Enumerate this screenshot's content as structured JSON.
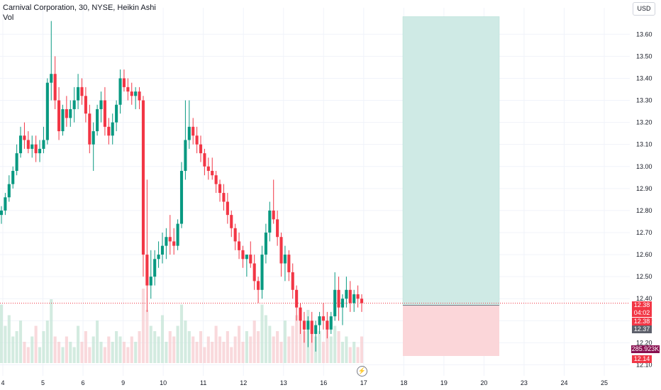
{
  "header": {
    "title": "Carnival Corporation, 30, NYSE, Heikin Ashi",
    "vol_label": "Vol",
    "currency": "USD"
  },
  "tags": {
    "price": "12.38",
    "countdown": "04:02",
    "price2": "12.38",
    "prev": "12.37",
    "volume": "285.923K",
    "stop": "12.14"
  },
  "colors": {
    "up": "#089981",
    "down": "#f23645",
    "target_zone": "#cfeae5",
    "stop_zone": "#fbd6d9"
  },
  "chart_data": {
    "type": "candlestick",
    "ylim": [
      12.05,
      13.72
    ],
    "y_ticks": [
      12.1,
      12.2,
      12.3,
      12.4,
      12.5,
      12.6,
      12.7,
      12.8,
      12.9,
      13.0,
      13.1,
      13.2,
      13.3,
      13.4,
      13.5,
      13.6
    ],
    "y_tick_labels": [
      "12.10",
      "12.20",
      "12.30",
      "12.40",
      "12.50",
      "12.60",
      "12.70",
      "12.80",
      "12.90",
      "13.00",
      "13.10",
      "13.20",
      "13.30",
      "13.40",
      "13.50",
      "13.60"
    ],
    "x_ticks": [
      "4",
      "5",
      "6",
      "9",
      "10",
      "11",
      "12",
      "13",
      "16",
      "17",
      "18",
      "19",
      "20",
      "23",
      "24",
      "25"
    ],
    "last_price": 12.38,
    "position": {
      "entry": 12.37,
      "target": 13.68,
      "stop": 12.14
    },
    "candles": [
      [
        12.78,
        12.82,
        12.74,
        12.8
      ],
      [
        12.8,
        12.88,
        12.78,
        12.86
      ],
      [
        12.86,
        12.96,
        12.84,
        12.92
      ],
      [
        12.92,
        13.0,
        12.9,
        12.98
      ],
      [
        12.98,
        13.1,
        12.96,
        13.06
      ],
      [
        13.06,
        13.18,
        13.04,
        13.14
      ],
      [
        13.14,
        13.2,
        13.08,
        13.12
      ],
      [
        13.12,
        13.16,
        13.06,
        13.08
      ],
      [
        13.08,
        13.14,
        13.04,
        13.1
      ],
      [
        13.1,
        13.14,
        13.02,
        13.06
      ],
      [
        13.06,
        13.12,
        13.02,
        13.08
      ],
      [
        13.08,
        13.18,
        13.06,
        13.12
      ],
      [
        13.12,
        13.4,
        13.1,
        13.38
      ],
      [
        13.38,
        13.66,
        13.3,
        13.42
      ],
      [
        13.42,
        13.5,
        13.26,
        13.3
      ],
      [
        13.3,
        13.36,
        13.12,
        13.16
      ],
      [
        13.16,
        13.28,
        13.14,
        13.26
      ],
      [
        13.26,
        13.32,
        13.18,
        13.22
      ],
      [
        13.22,
        13.3,
        13.18,
        13.26
      ],
      [
        13.26,
        13.36,
        13.2,
        13.3
      ],
      [
        13.3,
        13.42,
        13.26,
        13.36
      ],
      [
        13.36,
        13.4,
        13.28,
        13.32
      ],
      [
        13.32,
        13.36,
        13.2,
        13.24
      ],
      [
        13.24,
        13.28,
        13.06,
        13.1
      ],
      [
        13.1,
        13.2,
        12.98,
        13.16
      ],
      [
        13.16,
        13.28,
        13.14,
        13.26
      ],
      [
        13.26,
        13.34,
        13.2,
        13.3
      ],
      [
        13.3,
        13.36,
        13.14,
        13.18
      ],
      [
        13.18,
        13.22,
        13.1,
        13.14
      ],
      [
        13.14,
        13.24,
        13.1,
        13.2
      ],
      [
        13.2,
        13.3,
        13.16,
        13.28
      ],
      [
        13.28,
        13.44,
        13.24,
        13.4
      ],
      [
        13.4,
        13.44,
        13.34,
        13.36
      ],
      [
        13.36,
        13.4,
        13.3,
        13.34
      ],
      [
        13.34,
        13.38,
        13.28,
        13.32
      ],
      [
        13.32,
        13.36,
        13.26,
        13.34
      ],
      [
        13.34,
        13.36,
        13.26,
        13.3
      ],
      [
        13.3,
        13.32,
        12.5,
        12.6
      ],
      [
        12.6,
        12.94,
        12.34,
        12.46
      ],
      [
        12.46,
        12.62,
        12.4,
        12.5
      ],
      [
        12.5,
        12.62,
        12.46,
        12.58
      ],
      [
        12.58,
        12.66,
        12.54,
        12.6
      ],
      [
        12.6,
        12.7,
        12.56,
        12.64
      ],
      [
        12.64,
        12.72,
        12.58,
        12.68
      ],
      [
        12.68,
        12.78,
        12.6,
        12.66
      ],
      [
        12.66,
        12.72,
        12.6,
        12.64
      ],
      [
        12.64,
        12.76,
        12.62,
        12.74
      ],
      [
        12.74,
        13.02,
        12.72,
        12.98
      ],
      [
        12.98,
        13.3,
        12.94,
        13.12
      ],
      [
        13.12,
        13.3,
        13.08,
        13.18
      ],
      [
        13.18,
        13.22,
        13.1,
        13.14
      ],
      [
        13.14,
        13.18,
        13.06,
        13.1
      ],
      [
        13.1,
        13.14,
        13.02,
        13.06
      ],
      [
        13.06,
        13.08,
        12.96,
        13.0
      ],
      [
        13.0,
        13.04,
        12.94,
        12.98
      ],
      [
        12.98,
        13.04,
        12.94,
        12.96
      ],
      [
        12.96,
        12.98,
        12.88,
        12.92
      ],
      [
        12.92,
        12.94,
        12.84,
        12.88
      ],
      [
        12.88,
        12.92,
        12.8,
        12.84
      ],
      [
        12.84,
        12.88,
        12.74,
        12.78
      ],
      [
        12.78,
        12.8,
        12.68,
        12.72
      ],
      [
        12.72,
        12.74,
        12.62,
        12.66
      ],
      [
        12.66,
        12.7,
        12.58,
        12.62
      ],
      [
        12.62,
        12.64,
        12.54,
        12.58
      ],
      [
        12.58,
        12.6,
        12.5,
        12.6
      ],
      [
        12.6,
        12.66,
        12.54,
        12.56
      ],
      [
        12.56,
        12.6,
        12.44,
        12.48
      ],
      [
        12.48,
        12.5,
        12.38,
        12.44
      ],
      [
        12.44,
        12.64,
        12.4,
        12.6
      ],
      [
        12.6,
        12.74,
        12.56,
        12.7
      ],
      [
        12.7,
        12.84,
        12.66,
        12.8
      ],
      [
        12.8,
        12.94,
        12.74,
        12.76
      ],
      [
        12.76,
        12.8,
        12.64,
        12.68
      ],
      [
        12.68,
        12.7,
        12.5,
        12.56
      ],
      [
        12.56,
        12.64,
        12.48,
        12.6
      ],
      [
        12.6,
        12.62,
        12.48,
        12.52
      ],
      [
        12.52,
        12.56,
        12.4,
        12.44
      ],
      [
        12.44,
        12.46,
        12.3,
        12.36
      ],
      [
        12.36,
        12.38,
        12.24,
        12.3
      ],
      [
        12.3,
        12.34,
        12.2,
        12.26
      ],
      [
        12.26,
        12.32,
        12.18,
        12.3
      ],
      [
        12.3,
        12.34,
        12.2,
        12.24
      ],
      [
        12.24,
        12.3,
        12.16,
        12.28
      ],
      [
        12.28,
        12.34,
        12.24,
        12.32
      ],
      [
        12.32,
        12.38,
        12.26,
        12.3
      ],
      [
        12.3,
        12.34,
        12.22,
        12.26
      ],
      [
        12.26,
        12.34,
        12.24,
        12.32
      ],
      [
        12.32,
        12.52,
        12.3,
        12.44
      ],
      [
        12.44,
        12.5,
        12.3,
        12.36
      ],
      [
        12.36,
        12.42,
        12.28,
        12.4
      ],
      [
        12.4,
        12.5,
        12.36,
        12.44
      ],
      [
        12.44,
        12.48,
        12.34,
        12.38
      ],
      [
        12.38,
        12.44,
        12.34,
        12.42
      ],
      [
        12.42,
        12.46,
        12.36,
        12.4
      ],
      [
        12.4,
        12.42,
        12.34,
        12.38
      ]
    ],
    "volumes": [
      0.55,
      0.35,
      0.45,
      0.25,
      0.3,
      0.4,
      0.2,
      0.15,
      0.25,
      0.35,
      0.15,
      0.3,
      0.4,
      0.6,
      0.25,
      0.2,
      0.15,
      0.25,
      0.2,
      0.15,
      0.35,
      0.2,
      0.3,
      0.15,
      0.25,
      0.4,
      0.2,
      0.15,
      0.25,
      0.2,
      0.3,
      0.25,
      0.2,
      0.15,
      0.25,
      0.2,
      0.3,
      0.7,
      0.5,
      0.35,
      0.3,
      0.25,
      0.45,
      0.2,
      0.3,
      0.25,
      0.35,
      0.55,
      0.4,
      0.3,
      0.25,
      0.2,
      0.3,
      0.15,
      0.25,
      0.2,
      0.35,
      0.25,
      0.2,
      0.3,
      0.15,
      0.25,
      0.35,
      0.2,
      0.3,
      0.25,
      0.4,
      0.3,
      0.55,
      0.45,
      0.35,
      0.25,
      0.3,
      0.2,
      0.4,
      0.25,
      0.35,
      0.45,
      0.4,
      0.3,
      0.5,
      0.35,
      0.25,
      0.3,
      0.2,
      0.4,
      0.25,
      0.35,
      0.3,
      0.2,
      0.25,
      0.15,
      0.2,
      0.15,
      0.25
    ]
  }
}
